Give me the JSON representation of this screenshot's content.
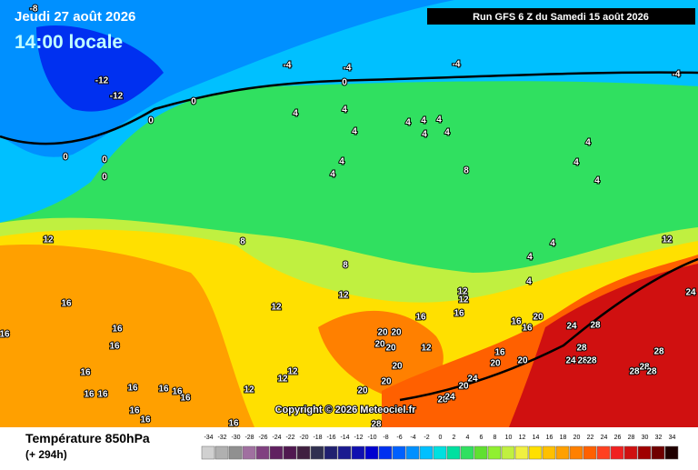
{
  "header": {
    "date": "Jeudi 27 août 2026",
    "time": "14:00 locale",
    "run": "Run GFS 6 Z du Samedi 15 août 2026"
  },
  "copyright": "Copyright © 2026 Meteociel.fr",
  "footer": {
    "title": "Température 850hPa",
    "lead": "(+ 294h)"
  },
  "scale": {
    "ticks": [
      -34,
      -32,
      -30,
      -28,
      -26,
      -24,
      -22,
      -20,
      -18,
      -16,
      -14,
      -12,
      -10,
      -8,
      -6,
      -4,
      -2,
      0,
      2,
      4,
      6,
      8,
      10,
      12,
      14,
      16,
      18,
      20,
      22,
      24,
      26,
      28,
      30,
      32,
      34
    ],
    "colors": [
      "#d0d0d0",
      "#b0b0b0",
      "#909090",
      "#a070a0",
      "#804080",
      "#602060",
      "#501850",
      "#402040",
      "#303050",
      "#202070",
      "#1a1a90",
      "#1010b0",
      "#0000d0",
      "#0030f0",
      "#0060ff",
      "#0090ff",
      "#00c0ff",
      "#00e0e0",
      "#00e0a0",
      "#30e060",
      "#60e030",
      "#90f030",
      "#c0f040",
      "#f0f040",
      "#ffe000",
      "#ffc000",
      "#ffa000",
      "#ff8000",
      "#ff6000",
      "#ff4020",
      "#f02020",
      "#d01010",
      "#a00000",
      "#700000",
      "#200000"
    ]
  },
  "map_labels": [
    -8,
    -12,
    -12,
    0,
    0,
    0,
    0,
    0,
    -4,
    -4,
    -4,
    -4,
    0,
    4,
    4,
    4,
    4,
    4,
    4,
    4,
    4,
    4,
    4,
    4,
    4,
    4,
    8,
    12,
    8,
    8,
    12,
    12,
    12,
    4,
    4,
    4,
    12,
    16,
    20,
    20,
    20,
    20,
    12,
    16,
    16,
    16,
    16,
    16,
    16,
    16,
    16,
    16,
    16,
    16,
    16,
    16,
    16,
    12,
    12,
    12,
    20,
    20,
    20,
    16,
    20,
    20,
    20,
    16,
    16,
    24,
    28,
    24,
    28,
    24,
    28,
    28,
    28,
    28,
    28,
    28,
    24,
    20,
    28,
    24,
    28,
    12,
    16
  ]
}
